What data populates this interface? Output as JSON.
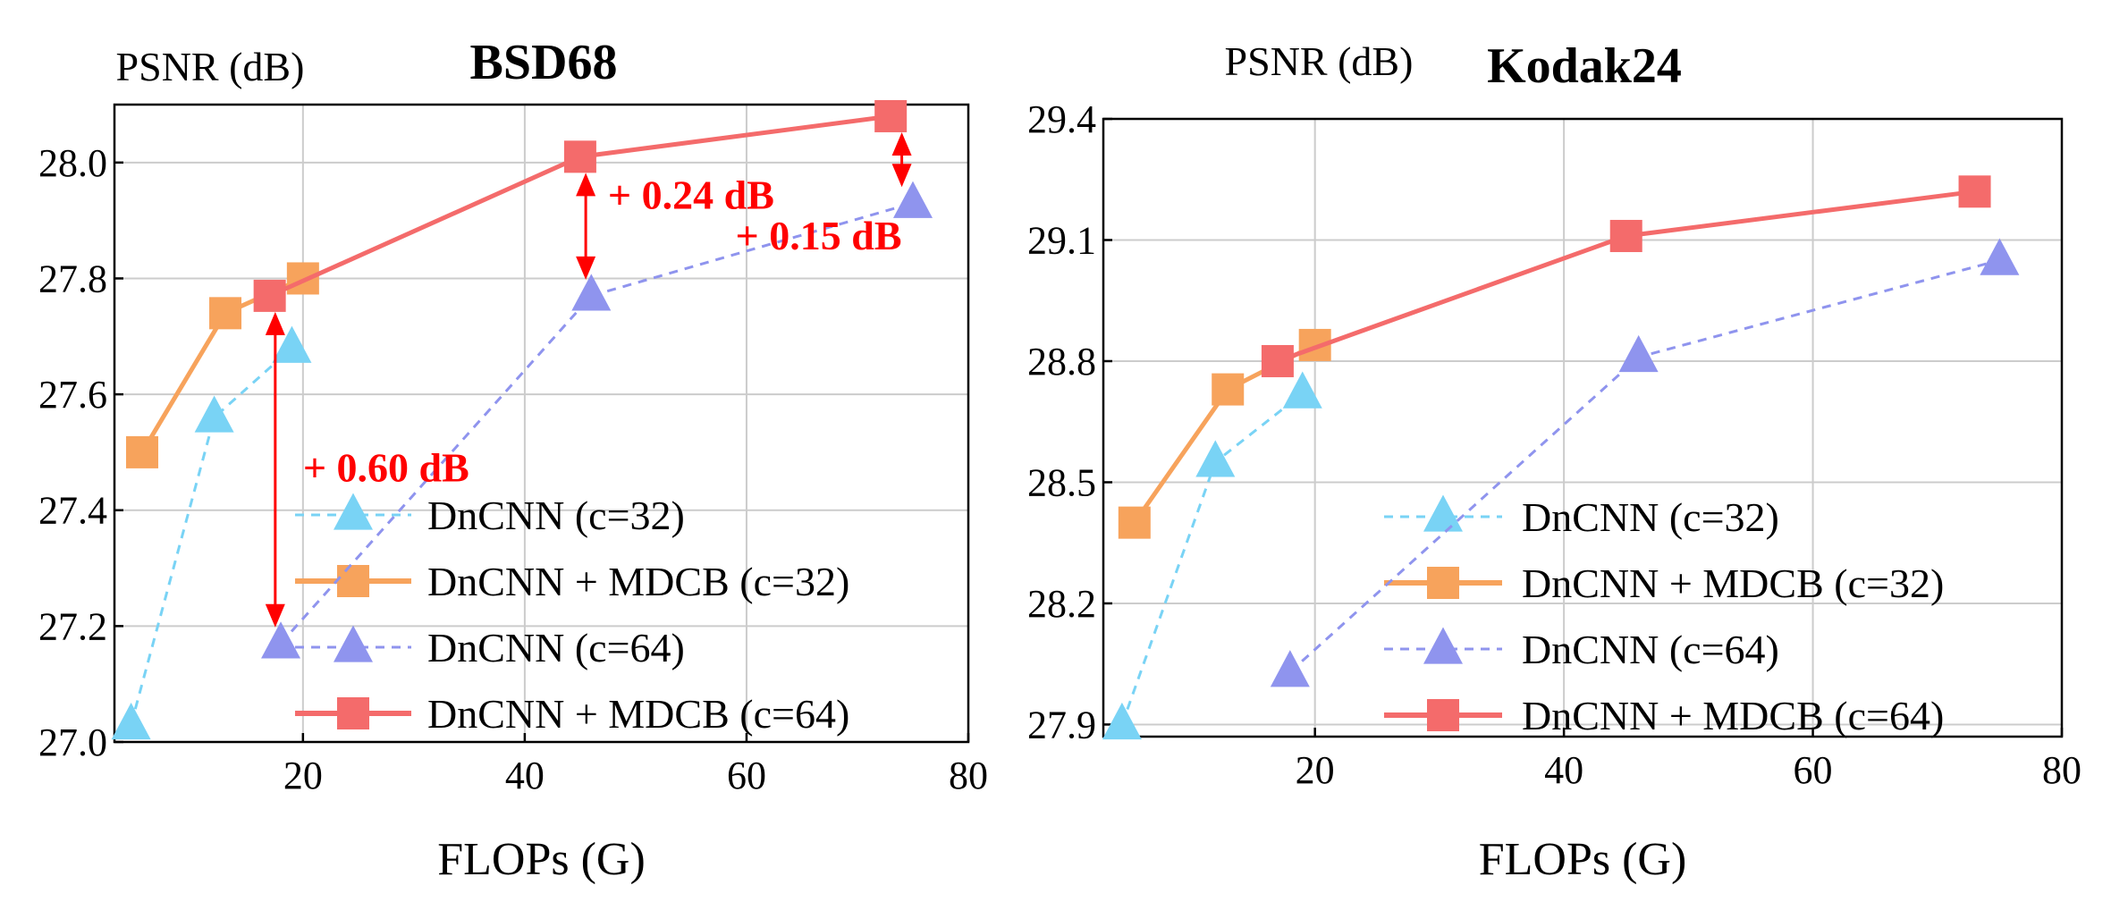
{
  "chart_data": [
    {
      "type": "line",
      "title": "BSD68",
      "ylabel": "PSNR (dB)",
      "xlabel": "FLOPs (G)",
      "xlim": [
        3,
        80
      ],
      "ylim": [
        27.0,
        28.1
      ],
      "xticks": [
        20,
        40,
        60,
        80
      ],
      "yticks": [
        27.0,
        27.2,
        27.4,
        27.6,
        27.8,
        28.0
      ],
      "ytick_labels": [
        "27.0",
        "27.2",
        "27.4",
        "27.6",
        "27.8",
        "28.0"
      ],
      "grid": true,
      "legend_position": "bottom-right",
      "series": [
        {
          "name": "DnCNN (c=32)",
          "marker": "triangle",
          "color": "#79d3f5",
          "line": "dashed",
          "x": [
            4.5,
            12,
            19
          ],
          "y": [
            27.03,
            27.56,
            27.68
          ]
        },
        {
          "name": "DnCNN + MDCB (c=32)",
          "marker": "square",
          "color": "#f7a35c",
          "line": "solid",
          "x": [
            5.5,
            13,
            20
          ],
          "y": [
            27.5,
            27.74,
            27.8
          ]
        },
        {
          "name": "DnCNN (c=64)",
          "marker": "triangle",
          "color": "#8f94ee",
          "line": "dashed",
          "x": [
            18,
            46,
            75
          ],
          "y": [
            27.17,
            27.77,
            27.93
          ]
        },
        {
          "name": "DnCNN + MDCB (c=64)",
          "marker": "square",
          "color": "#f46b6b",
          "line": "solid",
          "x": [
            17,
            45,
            73
          ],
          "y": [
            27.77,
            28.01,
            28.08
          ]
        }
      ],
      "annotations": [
        {
          "text": "+ 0.60 dB",
          "x": 20,
          "y": 27.45,
          "from_y": 27.77,
          "to_y": 27.17,
          "arrow_x": 17.5
        },
        {
          "text": "+ 0.24 dB",
          "x": 47.5,
          "y": 27.92,
          "from_y": 28.01,
          "to_y": 27.77,
          "arrow_x": 45.5
        },
        {
          "text": "+ 0.15 dB",
          "x": 59,
          "y": 27.85,
          "from_y": 28.08,
          "to_y": 27.93,
          "arrow_x": 74
        }
      ]
    },
    {
      "type": "line",
      "title": "Kodak24",
      "ylabel": "PSNR (dB)",
      "xlabel": "FLOPs (G)",
      "xlim": [
        3,
        80
      ],
      "ylim": [
        27.87,
        29.4
      ],
      "xticks": [
        20,
        40,
        60,
        80
      ],
      "yticks": [
        27.9,
        28.2,
        28.5,
        28.8,
        29.1,
        29.4
      ],
      "ytick_labels": [
        "27.9",
        "28.2",
        "28.5",
        "28.8",
        "29.1",
        "29.4"
      ],
      "grid": true,
      "legend_position": "bottom-right",
      "series": [
        {
          "name": "DnCNN (c=32)",
          "marker": "triangle",
          "color": "#79d3f5",
          "line": "dashed",
          "x": [
            4.5,
            12,
            19
          ],
          "y": [
            27.9,
            28.55,
            28.72
          ]
        },
        {
          "name": "DnCNN + MDCB (c=32)",
          "marker": "square",
          "color": "#f7a35c",
          "line": "solid",
          "x": [
            5.5,
            13,
            20
          ],
          "y": [
            28.4,
            28.73,
            28.84
          ]
        },
        {
          "name": "DnCNN (c=64)",
          "marker": "triangle",
          "color": "#8f94ee",
          "line": "dashed",
          "x": [
            18,
            46,
            75
          ],
          "y": [
            28.03,
            28.81,
            29.05
          ]
        },
        {
          "name": "DnCNN + MDCB (c=64)",
          "marker": "square",
          "color": "#f46b6b",
          "line": "solid",
          "x": [
            17,
            45,
            73
          ],
          "y": [
            28.8,
            29.11,
            29.22
          ]
        }
      ],
      "annotations": []
    }
  ]
}
